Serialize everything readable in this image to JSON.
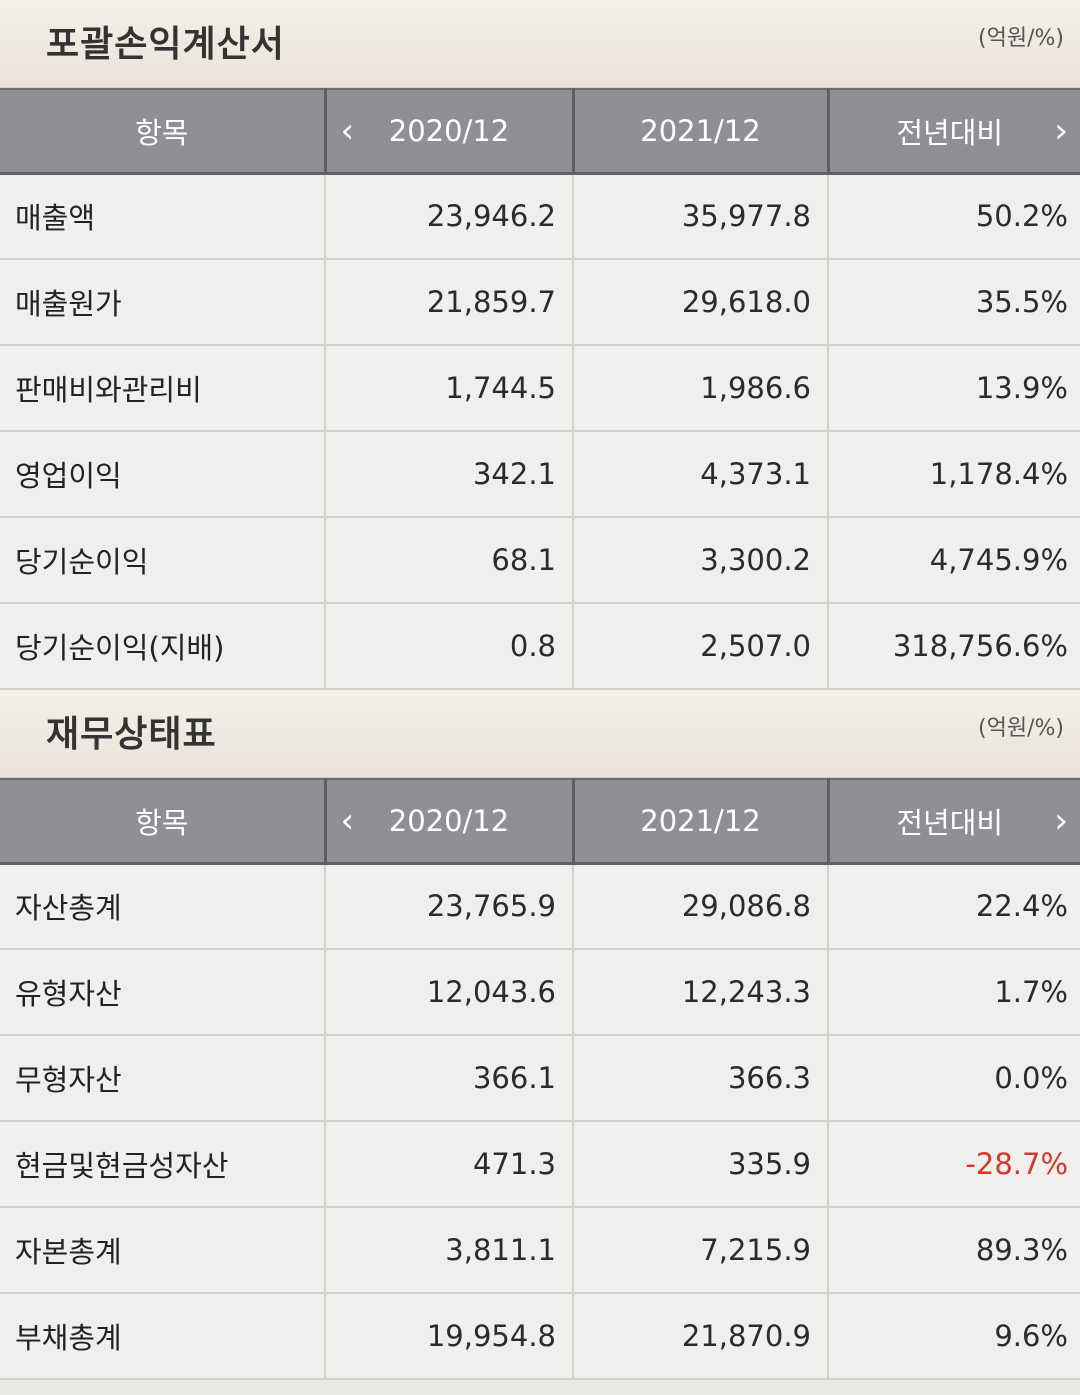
{
  "income_statement": {
    "title": "포괄손익계산서",
    "unit": "(억원/%)",
    "header": {
      "item": "항목",
      "col1": "2020/12",
      "col2": "2021/12",
      "col3": "전년대비"
    },
    "rows": [
      {
        "label": "매출액",
        "v2020": "23,946.2",
        "v2021": "35,977.8",
        "yoy": "50.2%"
      },
      {
        "label": "매출원가",
        "v2020": "21,859.7",
        "v2021": "29,618.0",
        "yoy": "35.5%"
      },
      {
        "label": "판매비와관리비",
        "v2020": "1,744.5",
        "v2021": "1,986.6",
        "yoy": "13.9%"
      },
      {
        "label": "영업이익",
        "v2020": "342.1",
        "v2021": "4,373.1",
        "yoy": "1,178.4%"
      },
      {
        "label": "당기순이익",
        "v2020": "68.1",
        "v2021": "3,300.2",
        "yoy": "4,745.9%"
      },
      {
        "label": "당기순이익(지배)",
        "v2020": "0.8",
        "v2021": "2,507.0",
        "yoy": "318,756.6%"
      }
    ]
  },
  "balance_sheet": {
    "title": "재무상태표",
    "unit": "(억원/%)",
    "header": {
      "item": "항목",
      "col1": "2020/12",
      "col2": "2021/12",
      "col3": "전년대비"
    },
    "rows": [
      {
        "label": "자산총계",
        "v2020": "23,765.9",
        "v2021": "29,086.8",
        "yoy": "22.4%"
      },
      {
        "label": "유형자산",
        "v2020": "12,043.6",
        "v2021": "12,243.3",
        "yoy": "1.7%"
      },
      {
        "label": "무형자산",
        "v2020": "366.1",
        "v2021": "366.3",
        "yoy": "0.0%"
      },
      {
        "label": "현금및현금성자산",
        "v2020": "471.3",
        "v2021": "335.9",
        "yoy": "-28.7%"
      },
      {
        "label": "자본총계",
        "v2020": "3,811.1",
        "v2021": "7,215.9",
        "yoy": "89.3%"
      },
      {
        "label": "부채총계",
        "v2020": "19,954.8",
        "v2021": "21,870.9",
        "yoy": "9.6%"
      }
    ]
  },
  "icons": {
    "prev": "chevron-left-icon",
    "next": "chevron-right-icon"
  },
  "colors": {
    "header_bg": "#8e9094",
    "negative": "#d2382c",
    "section_bg": "#f4f0e9"
  }
}
